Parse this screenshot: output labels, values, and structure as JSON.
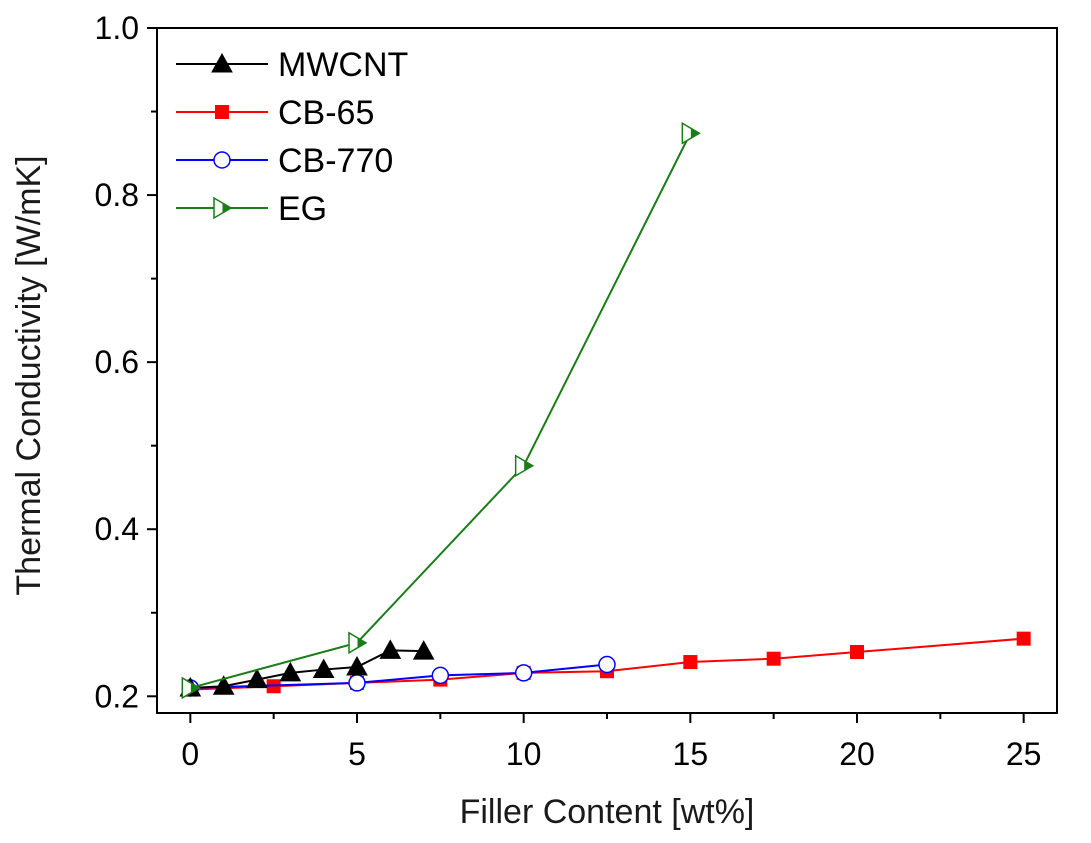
{
  "chart_data": {
    "type": "line",
    "title": "",
    "xlabel": "Filler Content [wt%]",
    "ylabel": "Thermal Conductivity [W/mK]",
    "xlim": [
      -1,
      26
    ],
    "ylim": [
      0.18,
      1.0
    ],
    "xticks": [
      0,
      5,
      10,
      15,
      20,
      25
    ],
    "xtick_labels": [
      "0",
      "5",
      "10",
      "15",
      "20",
      "25"
    ],
    "yticks": [
      0.2,
      0.4,
      0.6,
      0.8,
      1.0
    ],
    "ytick_labels": [
      "0.2",
      "0.4",
      "0.6",
      "0.8",
      "1.0"
    ],
    "grid": false,
    "legend_position": "top-left",
    "series": [
      {
        "name": "MWCNT",
        "color": "#000000",
        "marker": "triangle-up",
        "x": [
          0,
          1,
          2,
          3,
          4,
          5,
          6,
          7
        ],
        "y": [
          0.21,
          0.212,
          0.22,
          0.228,
          0.232,
          0.235,
          0.255,
          0.254
        ]
      },
      {
        "name": "CB-65",
        "color": "#ff0000",
        "marker": "square",
        "x": [
          0,
          2.5,
          5,
          7.5,
          10,
          12.5,
          15,
          17.5,
          20,
          25
        ],
        "y": [
          0.208,
          0.212,
          0.216,
          0.22,
          0.228,
          0.23,
          0.241,
          0.245,
          0.253,
          0.269
        ]
      },
      {
        "name": "CB-770",
        "color": "#0000ff",
        "marker": "circle-open",
        "x": [
          0,
          5,
          7.5,
          10,
          12.5
        ],
        "y": [
          0.21,
          0.216,
          0.225,
          0.228,
          0.238
        ]
      },
      {
        "name": "EG",
        "color": "#1a7d1a",
        "marker": "triangle-right-half",
        "x": [
          0,
          5,
          10,
          15
        ],
        "y": [
          0.21,
          0.264,
          0.476,
          0.874
        ]
      }
    ]
  }
}
